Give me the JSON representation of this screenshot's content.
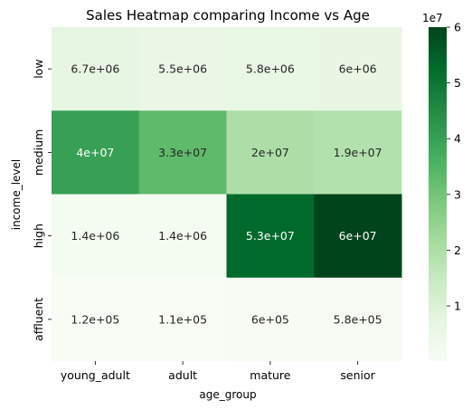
{
  "chart_data": {
    "type": "heatmap",
    "title": "Sales Heatmap comparing Income vs Age",
    "xlabel": "age_group",
    "ylabel": "income_level",
    "x_categories": [
      "young_adult",
      "adult",
      "mature",
      "senior"
    ],
    "y_categories": [
      "low",
      "medium",
      "high",
      "affluent"
    ],
    "values": [
      [
        6700000,
        5500000,
        5800000,
        6000000
      ],
      [
        40000000,
        33000000,
        20000000,
        19000000
      ],
      [
        1400000,
        1400000,
        53000000,
        60000000
      ],
      [
        120000,
        110000,
        600000,
        580000
      ]
    ],
    "annotations": [
      [
        "6.7e+06",
        "5.5e+06",
        "5.8e+06",
        "6e+06"
      ],
      [
        "4e+07",
        "3.3e+07",
        "2e+07",
        "1.9e+07"
      ],
      [
        "1.4e+06",
        "1.4e+06",
        "5.3e+07",
        "6e+07"
      ],
      [
        "1.2e+05",
        "1.1e+05",
        "6e+05",
        "5.8e+05"
      ]
    ],
    "colormap": "Greens",
    "colorbar": {
      "min": 110000,
      "max": 60000000,
      "ticks": [
        "1",
        "2",
        "3",
        "4",
        "5",
        "6"
      ],
      "tick_values": [
        10000000,
        20000000,
        30000000,
        40000000,
        50000000,
        60000000
      ],
      "scale_label": "1e7"
    }
  }
}
